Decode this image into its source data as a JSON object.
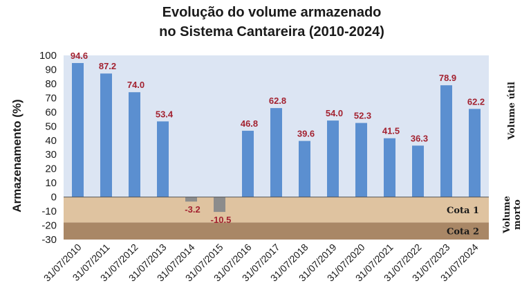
{
  "title_line1": "Evolução do volume armazenado",
  "title_line2": "no Sistema Cantareira (2010-2024)",
  "chart_data": {
    "type": "bar",
    "ylabel": "Armazenamento (%)",
    "ylim": [
      -30,
      100
    ],
    "yticks": [
      100,
      90,
      80,
      70,
      60,
      50,
      40,
      30,
      20,
      10,
      0,
      -10,
      -20,
      -30
    ],
    "categories": [
      "31/07/2010",
      "31/07/2011",
      "31/07/2012",
      "31/07/2013",
      "31/07/2014",
      "31/07/2015",
      "31/07/2016",
      "31/07/2017",
      "31/07/2018",
      "31/07/2019",
      "31/07/2020",
      "31/07/2021",
      "31/07/2022",
      "31/07/2023",
      "31/07/2024"
    ],
    "values": [
      94.6,
      87.2,
      74.0,
      53.4,
      -3.2,
      -10.5,
      46.8,
      62.8,
      39.6,
      54.0,
      52.3,
      41.5,
      36.3,
      78.9,
      62.2
    ],
    "value_labels": [
      "94.6",
      "87.2",
      "74.0",
      "53.4",
      "-3.2",
      "-10.5",
      "46.8",
      "62.8",
      "39.6",
      "54.0",
      "52.3",
      "41.5",
      "36.3",
      "78.9",
      "62.2"
    ],
    "bands": [
      {
        "label": "Cota 1",
        "from": 0,
        "to": -18,
        "color": "#dfc3a0"
      },
      {
        "label": "Cota 2",
        "from": -18,
        "to": -30,
        "color": "#a98766"
      }
    ],
    "side_labels": {
      "upper": "Volume útil",
      "lower": "Volume morto"
    },
    "colors": {
      "positive": "#5b8fd0",
      "negative": "#8c8c8c",
      "plot_bg": "#dce5f3",
      "data_label": "#a32230"
    },
    "grid": false
  }
}
